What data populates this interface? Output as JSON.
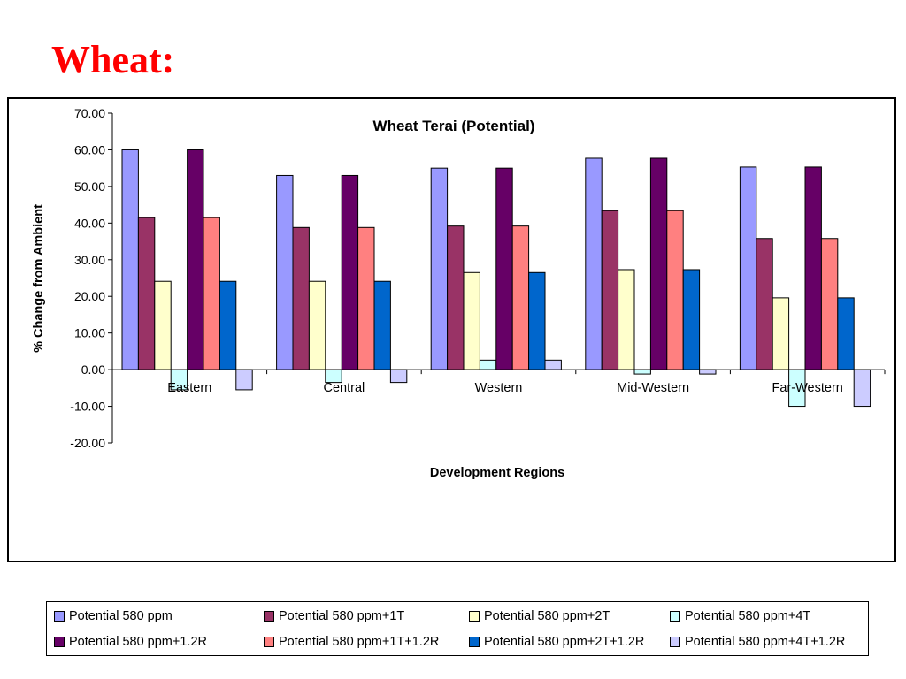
{
  "slide": {
    "title": "Wheat:"
  },
  "chart_data": {
    "type": "bar",
    "title": "Wheat Terai (Potential)",
    "xlabel": "Development Regions",
    "ylabel": "% Change from Ambient",
    "ylim": [
      -20,
      70
    ],
    "ytick_step": 10,
    "ytick_labels": [
      "70.00",
      "60.00",
      "50.00",
      "40.00",
      "30.00",
      "20.00",
      "10.00",
      "0.00",
      "-10.00",
      "-20.00"
    ],
    "categories": [
      "Eastern",
      "Central",
      "Western",
      "Mid-Western",
      "Far-Western"
    ],
    "grid": false,
    "legend_position": "bottom",
    "series": [
      {
        "name": "Potential 580 ppm",
        "color": "#9999ff",
        "values": [
          60.0,
          53.0,
          55.0,
          57.7,
          55.3
        ]
      },
      {
        "name": "Potential 580 ppm+1T",
        "color": "#993366",
        "values": [
          41.5,
          38.8,
          39.2,
          43.4,
          35.8
        ]
      },
      {
        "name": "Potential 580 ppm+2T",
        "color": "#ffffcc",
        "values": [
          24.1,
          24.1,
          26.5,
          27.3,
          19.6
        ]
      },
      {
        "name": "Potential 580 ppm+4T",
        "color": "#ccffff",
        "values": [
          -5.5,
          -3.5,
          2.6,
          -1.2,
          -10.0
        ]
      },
      {
        "name": "Potential 580 ppm+1.2R",
        "color": "#660066",
        "values": [
          60.0,
          53.0,
          55.0,
          57.7,
          55.3
        ]
      },
      {
        "name": "Potential 580 ppm+1T+1.2R",
        "color": "#ff8080",
        "values": [
          41.5,
          38.8,
          39.2,
          43.4,
          35.8
        ]
      },
      {
        "name": "Potential 580 ppm+2T+1.2R",
        "color": "#0066cc",
        "values": [
          24.1,
          24.1,
          26.5,
          27.3,
          19.6
        ]
      },
      {
        "name": "Potential 580 ppm+4T+1.2R",
        "color": "#ccccff",
        "values": [
          -5.5,
          -3.5,
          2.6,
          -1.2,
          -10.0
        ]
      }
    ]
  }
}
